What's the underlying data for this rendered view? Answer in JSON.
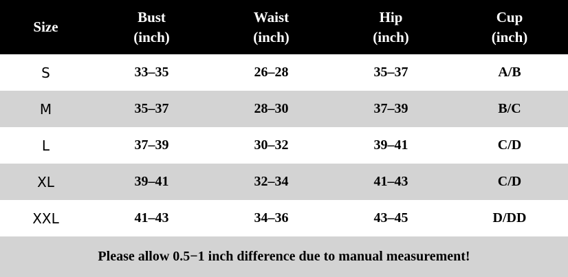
{
  "table": {
    "headers": [
      {
        "line1": "Size",
        "line2": ""
      },
      {
        "line1": "Bust",
        "line2": "(inch)"
      },
      {
        "line1": "Waist",
        "line2": "(inch)"
      },
      {
        "line1": "Hip",
        "line2": "(inch)"
      },
      {
        "line1": "Cup",
        "line2": "(inch)"
      }
    ],
    "rows": [
      {
        "size": "S",
        "bust": "33–35",
        "waist": "26–28",
        "hip": "35–37",
        "cup": "A/B"
      },
      {
        "size": "M",
        "bust": "35–37",
        "waist": "28–30",
        "hip": "37–39",
        "cup": "B/C"
      },
      {
        "size": "L",
        "bust": "37–39",
        "waist": "30–32",
        "hip": "39–41",
        "cup": "C/D"
      },
      {
        "size": "XL",
        "bust": "39–41",
        "waist": "32–34",
        "hip": "41–43",
        "cup": "C/D"
      },
      {
        "size": "XXL",
        "bust": "41–43",
        "waist": "34–36",
        "hip": "43–45",
        "cup": "D/DD"
      }
    ]
  },
  "note": "Please allow 0.5−1 inch difference due to manual measurement!",
  "colors": {
    "header_bg": "#000000",
    "header_text": "#ffffff",
    "band_gray": "#d3d3d3"
  }
}
